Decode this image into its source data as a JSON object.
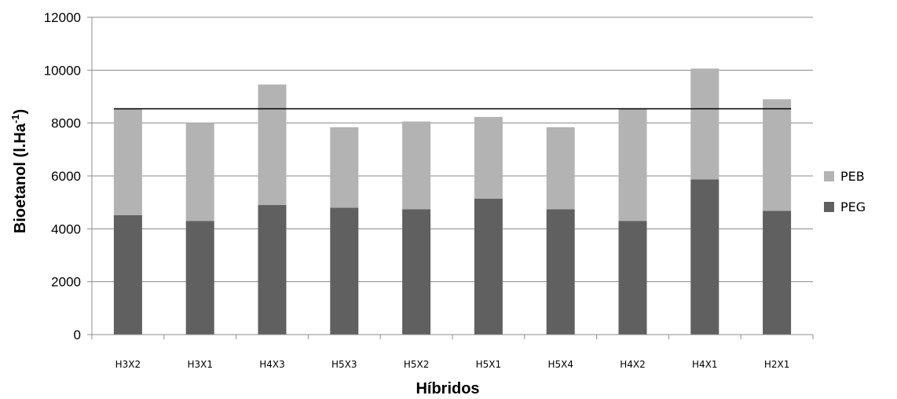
{
  "chart_data": {
    "type": "bar",
    "stacked": true,
    "title": "",
    "xlabel": "Híbridos",
    "ylabel": "Bioetanol (l.Ha-1)",
    "ylabel_main": "Bioetanol (l.Ha",
    "ylabel_sup": "-1",
    "ylabel_end": ")",
    "ylim": [
      0,
      12000
    ],
    "yticks": [
      "0",
      "2000",
      "4000",
      "6000",
      "8000",
      "10000",
      "12000"
    ],
    "grid": true,
    "legend_position": "right",
    "categories": [
      "H3X2",
      "H3X1",
      "H4X3",
      "H5X3",
      "H5X2",
      "H5X1",
      "H5X4",
      "H4X2",
      "H4X1",
      "H2X1"
    ],
    "series": [
      {
        "name": "PEG",
        "color": "#606060",
        "values": [
          4520,
          4300,
          4900,
          4800,
          4740,
          5140,
          4740,
          4300,
          5870,
          4680
        ]
      },
      {
        "name": "PEB",
        "color": "#b3b3b3",
        "values": [
          4020,
          3700,
          4560,
          3040,
          3320,
          3090,
          3100,
          4250,
          4190,
          4220
        ]
      }
    ],
    "reference_line": 8540
  }
}
